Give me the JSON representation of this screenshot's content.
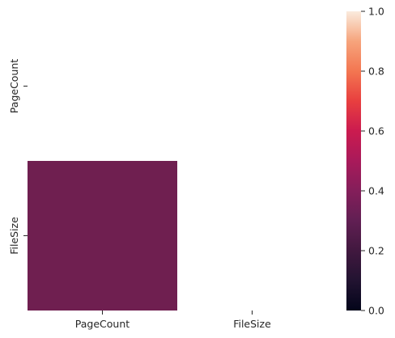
{
  "chart_data": {
    "type": "heatmap",
    "title": "",
    "rows": [
      "PageCount",
      "FileSize"
    ],
    "columns": [
      "PageCount",
      "FileSize"
    ],
    "values": [
      [
        null,
        null
      ],
      [
        0.35,
        null
      ]
    ],
    "mask": "upper-triangle including diagonal",
    "colorbar": {
      "min": 0.0,
      "max": 1.0,
      "ticks": [
        "0.0",
        "0.2",
        "0.4",
        "0.6",
        "0.8",
        "1.0"
      ],
      "colormap": "rocket"
    },
    "cell_color": "#6f1f50",
    "grid": false
  }
}
